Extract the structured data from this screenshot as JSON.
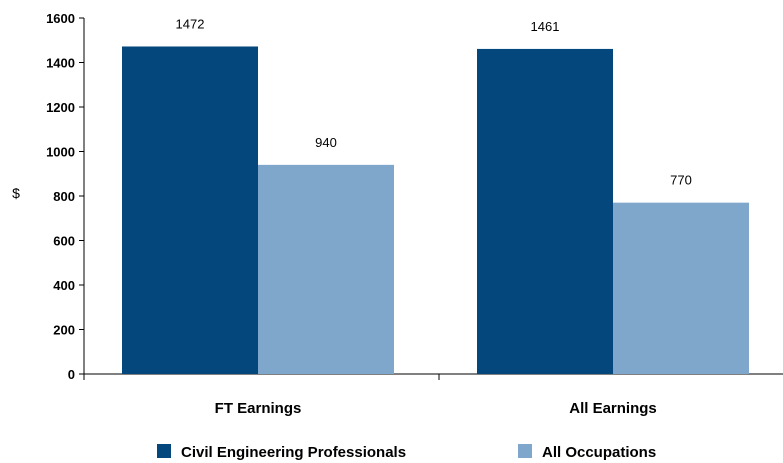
{
  "chart_data": {
    "type": "bar",
    "categories": [
      "FT Earnings",
      "All Earnings"
    ],
    "series": [
      {
        "name": "Civil Engineering Professionals",
        "values": [
          1472,
          1461
        ],
        "color": "#04477c"
      },
      {
        "name": "All Occupations",
        "values": [
          940,
          770
        ],
        "color": "#7fa6cb"
      }
    ],
    "ylabel": "$",
    "ylim": [
      0,
      1600
    ],
    "yticks": [
      0,
      200,
      400,
      600,
      800,
      1000,
      1200,
      1400,
      1600
    ],
    "grid": false,
    "legend": "bottom",
    "data_labels": true
  }
}
